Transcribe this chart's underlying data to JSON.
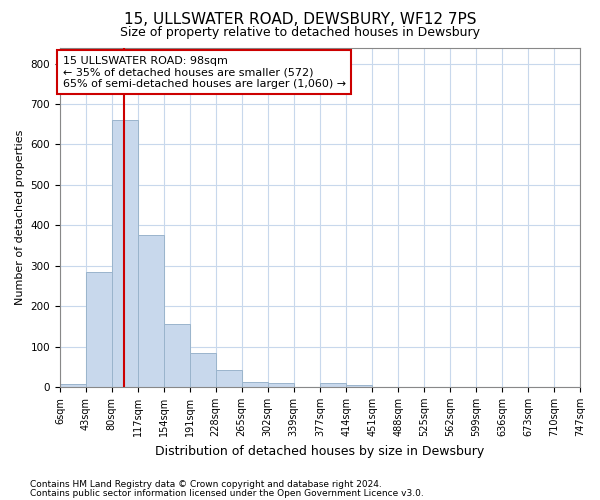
{
  "title1": "15, ULLSWATER ROAD, DEWSBURY, WF12 7PS",
  "title2": "Size of property relative to detached houses in Dewsbury",
  "xlabel": "Distribution of detached houses by size in Dewsbury",
  "ylabel": "Number of detached properties",
  "footer1": "Contains HM Land Registry data © Crown copyright and database right 2024.",
  "footer2": "Contains public sector information licensed under the Open Government Licence v3.0.",
  "annotation_line1": "15 ULLSWATER ROAD: 98sqm",
  "annotation_line2": "← 35% of detached houses are smaller (572)",
  "annotation_line3": "65% of semi-detached houses are larger (1,060) →",
  "property_size": 98,
  "bin_edges": [
    6,
    43,
    80,
    117,
    154,
    191,
    228,
    265,
    302,
    339,
    377,
    414,
    451,
    488,
    525,
    562,
    599,
    636,
    673,
    710,
    747
  ],
  "bar_heights": [
    8,
    285,
    660,
    375,
    155,
    85,
    42,
    13,
    10,
    0,
    10,
    5,
    0,
    0,
    0,
    0,
    0,
    0,
    0,
    0
  ],
  "bar_color": "#c8d8ec",
  "bar_edge_color": "#9ab4cc",
  "grid_color": "#c8d8ec",
  "vline_color": "#cc0000",
  "annotation_box_color": "#cc0000",
  "background_color": "#ffffff",
  "plot_bg_color": "#ffffff",
  "ylim": [
    0,
    840
  ],
  "yticks": [
    0,
    100,
    200,
    300,
    400,
    500,
    600,
    700,
    800
  ],
  "title1_fontsize": 11,
  "title2_fontsize": 9,
  "xlabel_fontsize": 9,
  "ylabel_fontsize": 8,
  "tick_fontsize": 7,
  "annotation_fontsize": 8,
  "footer_fontsize": 6.5
}
